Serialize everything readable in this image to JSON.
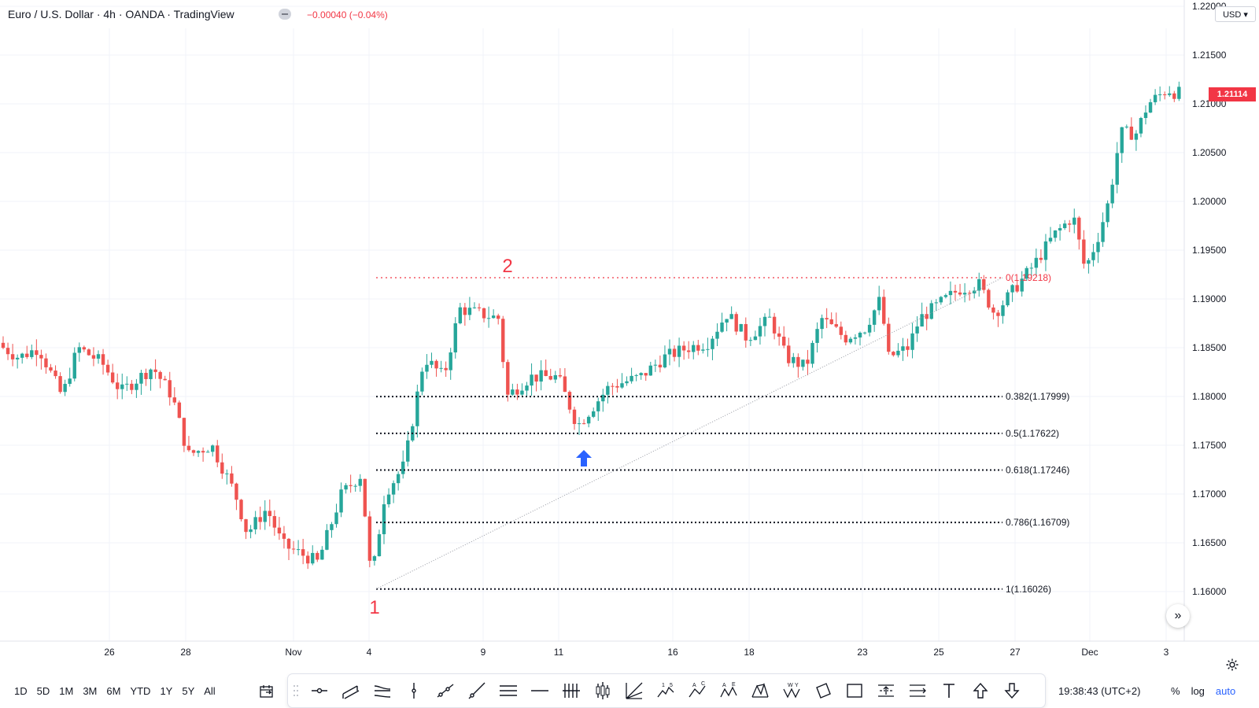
{
  "header": {
    "symbol": "Euro / U.S. Dollar · 4h · OANDA · TradingView",
    "change": "−0.00040 (−0.04%)"
  },
  "price_axis": {
    "currency": "USD ▾",
    "last_price": "1.21114",
    "last_price_color": "#f23645",
    "labels": [
      "1.22000",
      "1.21500",
      "1.21000",
      "1.20500",
      "1.20000",
      "1.19500",
      "1.19000",
      "1.18500",
      "1.18000",
      "1.17500",
      "1.17000",
      "1.16500",
      "1.16000"
    ]
  },
  "time_axis": {
    "labels": [
      "26",
      "28",
      "Nov",
      "4",
      "9",
      "11",
      "16",
      "18",
      "23",
      "25",
      "27",
      "Dec",
      "3"
    ]
  },
  "annotations": {
    "point_1": "1",
    "point_2": "2",
    "point_color": "#f23645",
    "arrow_color": "#2962ff"
  },
  "fibonacci": [
    {
      "label": "0(1.19218)",
      "value": 1.19218,
      "color": "#f23645"
    },
    {
      "label": "0.382(1.17999)",
      "value": 1.17999,
      "color": "#131722"
    },
    {
      "label": "0.5(1.17622)",
      "value": 1.17622,
      "color": "#131722"
    },
    {
      "label": "0.618(1.17246)",
      "value": 1.17246,
      "color": "#131722"
    },
    {
      "label": "0.786(1.16709)",
      "value": 1.16709,
      "color": "#131722"
    },
    {
      "label": "1(1.16026)",
      "value": 1.16026,
      "color": "#131722"
    }
  ],
  "bottom": {
    "ranges": [
      "1D",
      "5D",
      "1M",
      "3M",
      "6M",
      "YTD",
      "1Y",
      "5Y",
      "All"
    ],
    "time": "19:38:43 (UTC+2)",
    "options": [
      "%",
      "log",
      "auto"
    ]
  },
  "tools": [
    "trend-line-icon",
    "parallel-channel-icon",
    "pitchfork-icon",
    "vertical-line-icon",
    "ray-icon",
    "extended-line-icon",
    "horizontal-lines-icon",
    "horizontal-line-icon",
    "cross-lines-icon",
    "candles-icon",
    "fib-fan-icon",
    "elliott-wave-icon",
    "abc-pattern-icon",
    "ae-pattern-icon",
    "xabcd-pattern-icon",
    "wyckoff-icon",
    "rotated-rectangle-icon",
    "rectangle-icon",
    "price-range-icon",
    "date-range-icon",
    "text-icon",
    "arrow-up-icon",
    "arrow-down-icon"
  ],
  "colors": {
    "up": "#26a69a",
    "down": "#ef5350"
  },
  "chart_data": {
    "type": "candlestick",
    "ylim": [
      1.1555,
      1.22
    ],
    "trend_line": {
      "from": 1.16026,
      "to": 1.19218
    },
    "candles": []
  }
}
